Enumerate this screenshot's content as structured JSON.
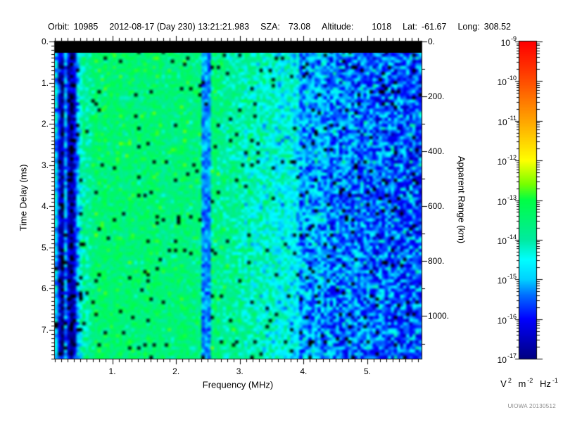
{
  "header": {
    "orbit_label": "Orbit:",
    "orbit_value": "10985",
    "datetime": "2012-08-17 (Day 230) 13:21:21.983",
    "sza_label": "SZA:",
    "sza_value": "73.08",
    "altitude_label": "Altitude:",
    "altitude_value": "1018",
    "lat_label": "Lat:",
    "lat_value": "-61.67",
    "long_label": "Long:",
    "long_value": "308.52"
  },
  "footer": {
    "credit": "UIOWA 20130512"
  },
  "chart_data": {
    "type": "heatmap",
    "description": "Radar sounder ionogram: spectral density versus frequency and echo time delay",
    "xlabel": "Frequency (MHz)",
    "x_range_mhz": [
      0.1,
      5.85
    ],
    "x_major_ticks": [
      1,
      2,
      3,
      4,
      5
    ],
    "x_major_tick_labels": [
      "1.",
      "2.",
      "3.",
      "4.",
      "5."
    ],
    "x_minor_tick_step_mhz": 0.1,
    "ylabel_left": "Time Delay (ms)",
    "y_range_ms": [
      0,
      7.7
    ],
    "y_major_ticks": [
      0,
      1,
      2,
      3,
      4,
      5,
      6,
      7
    ],
    "y_major_tick_labels": [
      "0.",
      "1.",
      "2.",
      "3.",
      "4.",
      "5.",
      "6.",
      "7."
    ],
    "y_minor_tick_step_ms": 0.1,
    "ylabel_right": "Apparent Range (km)",
    "right_axis_ticks_km": [
      0,
      200,
      400,
      600,
      800,
      1000
    ],
    "right_axis_tick_labels": [
      "0.",
      "200.",
      "400.",
      "600.",
      "800.",
      "1000."
    ],
    "right_axis_minor_step_km": 100,
    "km_per_ms": 150,
    "grid": false,
    "colorbar": {
      "scale": "log",
      "max": 1e-09,
      "min": 1e-17,
      "tick_exponents": [
        -9,
        -10,
        -11,
        -12,
        -13,
        -14,
        -15,
        -16,
        -17
      ],
      "tick_label_base": "10",
      "units_parts": [
        [
          "V",
          "2"
        ],
        [
          "m",
          "-2"
        ],
        [
          "Hz",
          "-1"
        ]
      ],
      "colormap_stops": [
        [
          -9.0,
          "#ff0000"
        ],
        [
          -9.8,
          "#ff3c00"
        ],
        [
          -11.0,
          "#ffa500"
        ],
        [
          -12.0,
          "#ffff00"
        ],
        [
          -12.6,
          "#78ff00"
        ],
        [
          -13.0,
          "#00ff46"
        ],
        [
          -14.0,
          "#00eba0"
        ],
        [
          -14.5,
          "#00ffff"
        ],
        [
          -15.0,
          "#00d2ff"
        ],
        [
          -15.4,
          "#006eff"
        ],
        [
          -16.0,
          "#0000ff"
        ],
        [
          -17.0,
          "#000082"
        ],
        [
          -17.5,
          "#000000"
        ]
      ]
    },
    "no_data_band": {
      "delay_range_ms": [
        0,
        0.27
      ],
      "color": "#000000"
    },
    "features": [
      {
        "name": "absorption-notch",
        "frequency_mhz": 2.5
      },
      {
        "name": "low-frequency-interference-stripes",
        "frequency_range_mhz": [
          0.1,
          0.56
        ]
      },
      {
        "name": "ionospheric-echo-band",
        "frequency_range_mhz": [
          0.7,
          2.4
        ],
        "approx_log10_density": -13.4
      },
      {
        "name": "weak-signal-region",
        "frequency_range_mhz": [
          3.92,
          5.85
        ],
        "approx_log10_density": -15.5
      }
    ],
    "bands": [
      {
        "f_min": 0.56,
        "f_max": 0.7,
        "log10_start": -14.2,
        "log10_end": -13.45,
        "sigma": 0.35,
        "black_speckle": 0.02
      },
      {
        "f_min": 0.7,
        "f_max": 2.4,
        "log10_start": -13.35,
        "log10_end": -13.55,
        "sigma": 0.32,
        "black_speckle": 0.02
      },
      {
        "f_min": 2.4,
        "f_max": 2.56,
        "log10_start": -15.3,
        "log10_end": -15.3,
        "sigma": 0.3,
        "black_speckle": 0.01
      },
      {
        "f_min": 2.56,
        "f_max": 3.05,
        "log10_start": -13.7,
        "log10_end": -13.9,
        "sigma": 0.4,
        "black_speckle": 0.025
      },
      {
        "f_min": 3.05,
        "f_max": 3.92,
        "log10_start": -13.95,
        "log10_end": -14.55,
        "sigma": 0.45,
        "black_speckle": 0.03
      },
      {
        "f_min": 3.92,
        "f_max": 5.85,
        "log10_start": -15.2,
        "log10_end": -15.75,
        "sigma": 0.5,
        "black_speckle": 0.035,
        "bright_blob_prob": 0.1,
        "bright_blob_log10": -14.6
      }
    ],
    "low_freq_stripes": {
      "f_min": 0.1,
      "f_max": 0.56,
      "column_log10": [
        -14.9,
        -16.1,
        -16.8,
        -15.1,
        -16.4,
        -16.9,
        -16.2,
        -15.0,
        -14.3,
        -13.9
      ],
      "sigma": 0.45,
      "black_speckle": 0.05
    }
  }
}
